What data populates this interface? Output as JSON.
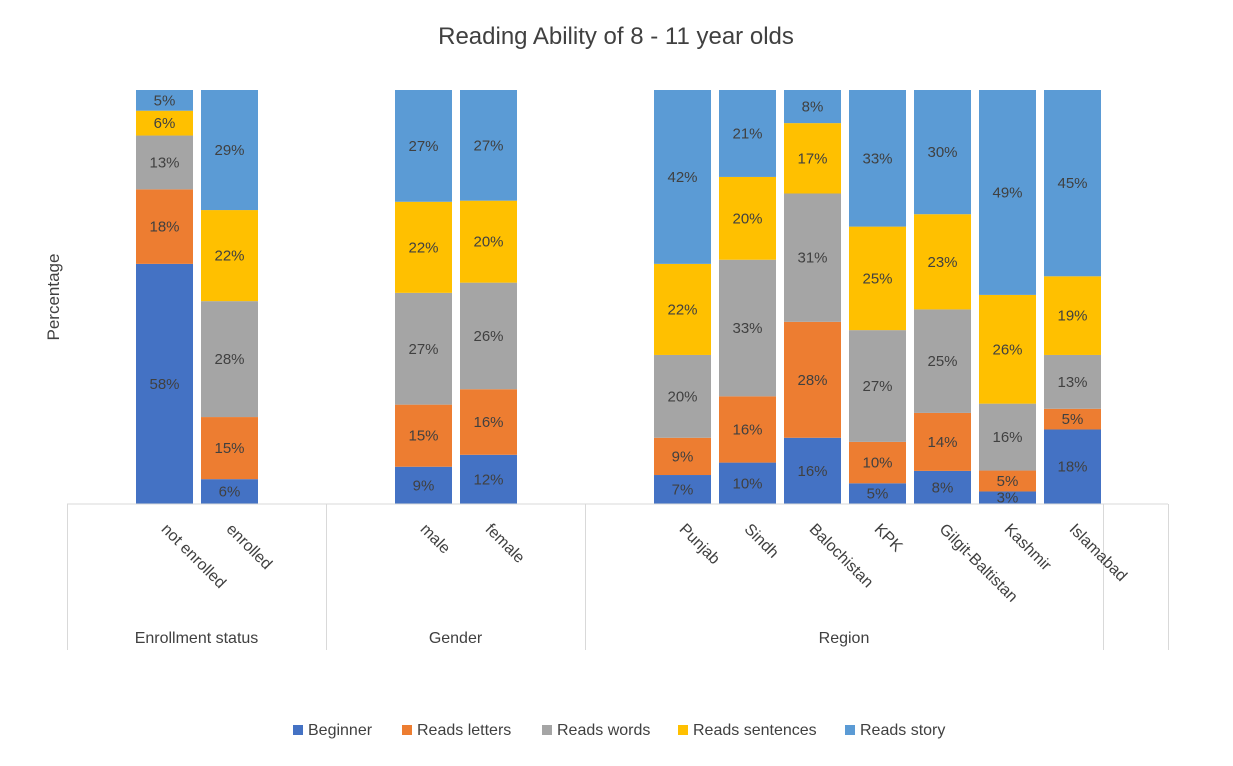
{
  "chart_data": {
    "type": "bar",
    "stacked": true,
    "title": "Reading Ability of 8 - 11 year olds",
    "ylabel": "Percentage",
    "ylim": [
      0,
      100
    ],
    "grid": false,
    "legend_position": "bottom",
    "groups": [
      {
        "name": "Enrollment status",
        "categories": [
          "not enrolled",
          "enrolled"
        ]
      },
      {
        "name": "Gender",
        "categories": [
          "male",
          "female"
        ]
      },
      {
        "name": "Region",
        "categories": [
          "Punjab",
          "Sindh",
          "Balochistan",
          "KPK",
          "Gilgit-Baltistan",
          "Kashmir",
          "Islamabad"
        ]
      }
    ],
    "categories": [
      "not enrolled",
      "enrolled",
      "male",
      "female",
      "Punjab",
      "Sindh",
      "Balochistan",
      "KPK",
      "Gilgit-Baltistan",
      "Kashmir",
      "Islamabad"
    ],
    "series": [
      {
        "name": "Beginner",
        "color": "#4472C4",
        "values": [
          58,
          6,
          9,
          12,
          7,
          10,
          16,
          5,
          8,
          3,
          18
        ]
      },
      {
        "name": "Reads letters",
        "color": "#ED7D31",
        "values": [
          18,
          15,
          15,
          16,
          9,
          16,
          28,
          10,
          14,
          5,
          5
        ]
      },
      {
        "name": "Reads words",
        "color": "#A5A5A5",
        "values": [
          13,
          28,
          27,
          26,
          20,
          33,
          31,
          27,
          25,
          16,
          13
        ]
      },
      {
        "name": "Reads sentences",
        "color": "#FFC000",
        "values": [
          6,
          22,
          22,
          20,
          22,
          20,
          17,
          25,
          23,
          26,
          19
        ]
      },
      {
        "name": "Reads story",
        "color": "#5B9BD5",
        "values": [
          5,
          29,
          27,
          27,
          42,
          21,
          8,
          33,
          30,
          49,
          45
        ]
      }
    ]
  }
}
